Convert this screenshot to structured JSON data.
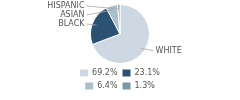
{
  "chart_data": {
    "type": "pie",
    "categories": [
      "WHITE",
      "BLACK",
      "ASIAN",
      "HISPANIC"
    ],
    "values": [
      69.2,
      23.1,
      6.4,
      1.3
    ],
    "value_labels": [
      "69.2%",
      "23.1%",
      "6.4%",
      "1.3%"
    ],
    "colors": [
      "#cdd8e3",
      "#2b5272",
      "#a8bfcc",
      "#7a96a8"
    ],
    "legend": "bottom"
  }
}
